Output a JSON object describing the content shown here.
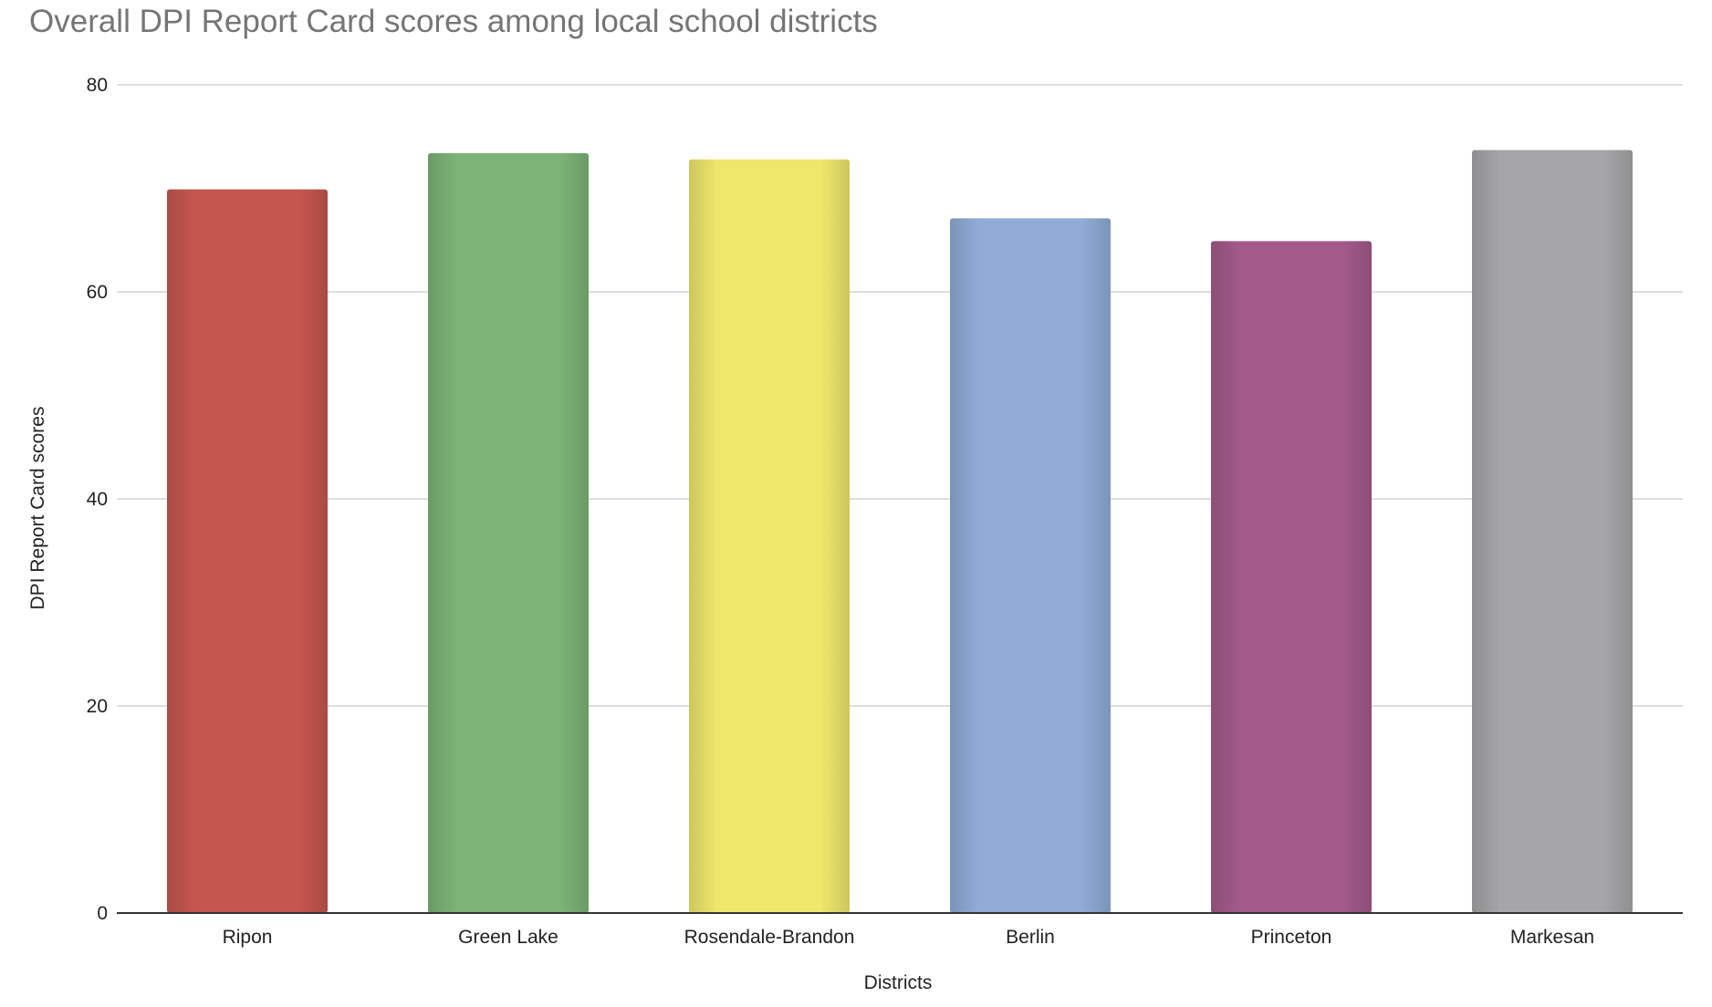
{
  "chart_data": {
    "type": "bar",
    "title": "Overall DPI Report Card scores among local school districts",
    "xlabel": "Districts",
    "ylabel": "DPI Report Card scores",
    "categories": [
      "Ripon",
      "Green Lake",
      "Rosendale-Brandon",
      "Berlin",
      "Princeton",
      "Markesan"
    ],
    "values": [
      69.9,
      73.4,
      72.8,
      67.1,
      64.9,
      73.7
    ],
    "colors": [
      "#c5564f",
      "#7cb376",
      "#eee76c",
      "#8fabd6",
      "#a35a8b",
      "#a6a5a7"
    ],
    "ylim": [
      0,
      80
    ],
    "yticks": [
      0,
      20,
      40,
      60,
      80
    ],
    "grid": true,
    "legend": "none"
  }
}
